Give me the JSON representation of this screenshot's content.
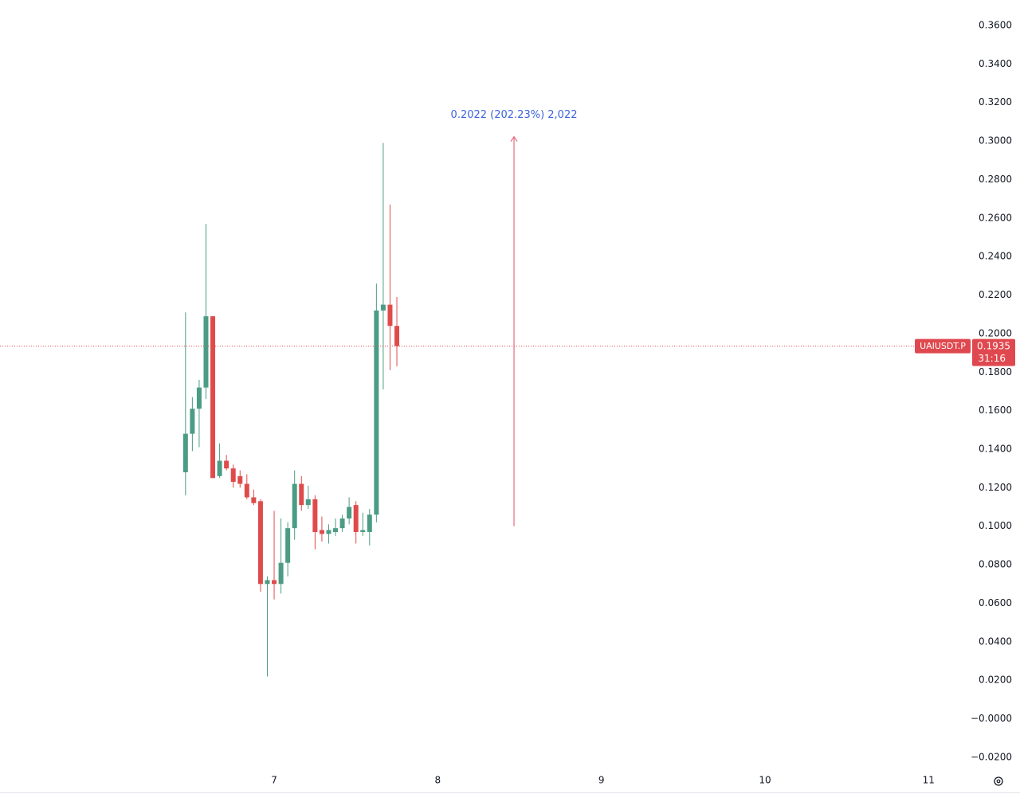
{
  "chart_data": {
    "type": "candlestick",
    "x": [
      6.4583,
      6.5,
      6.5417,
      6.5833,
      6.625,
      6.6667,
      6.7083,
      6.75,
      6.7917,
      6.8333,
      6.875,
      6.9167,
      6.9583,
      7,
      7.0417,
      7.0833,
      7.125,
      7.1667,
      7.2083,
      7.25,
      7.2917,
      7.3333,
      7.375,
      7.4167,
      7.4583,
      7.5,
      7.5417,
      7.5833,
      7.625,
      7.6667,
      7.7083,
      7.75
    ],
    "open": [
      0.128,
      0.148,
      0.161,
      0.172,
      0.209,
      0.126,
      0.134,
      0.13,
      0.126,
      0.122,
      0.115,
      0.113,
      0.07,
      0.072,
      0.07,
      0.081,
      0.099,
      0.122,
      0.111,
      0.114,
      0.098,
      0.096,
      0.097,
      0.099,
      0.104,
      0.111,
      0.097,
      0.097,
      0.106,
      0.212,
      0.215,
      0.204
    ],
    "high": [
      0.211,
      0.167,
      0.176,
      0.257,
      0.209,
      0.143,
      0.137,
      0.132,
      0.129,
      0.127,
      0.119,
      0.114,
      0.074,
      0.108,
      0.104,
      0.102,
      0.129,
      0.126,
      0.121,
      0.116,
      0.105,
      0.101,
      0.104,
      0.106,
      0.115,
      0.113,
      0.107,
      0.109,
      0.226,
      0.299,
      0.267,
      0.219
    ],
    "low": [
      0.116,
      0.139,
      0.141,
      0.166,
      0.125,
      0.125,
      0.129,
      0.12,
      0.12,
      0.114,
      0.111,
      0.066,
      0.022,
      0.062,
      0.065,
      0.074,
      0.093,
      0.108,
      0.109,
      0.088,
      0.092,
      0.091,
      0.095,
      0.097,
      0.101,
      0.091,
      0.095,
      0.09,
      0.102,
      0.171,
      0.181,
      0.183
    ],
    "close": [
      0.148,
      0.161,
      0.172,
      0.209,
      0.125,
      0.134,
      0.13,
      0.123,
      0.122,
      0.115,
      0.112,
      0.07,
      0.072,
      0.07,
      0.081,
      0.099,
      0.122,
      0.111,
      0.114,
      0.097,
      0.096,
      0.098,
      0.099,
      0.104,
      0.11,
      0.097,
      0.098,
      0.106,
      0.212,
      0.215,
      0.204,
      0.1935
    ],
    "up_color": "#4c9c85",
    "down_color": "#df4b4b",
    "xlim": [
      5.3244,
      11.242
    ],
    "xticks": [
      7,
      8,
      9,
      10,
      11
    ],
    "ylim": [
      -0.0258,
      0.3732
    ],
    "yticks": [
      {
        "value": 0.36,
        "label": "0.3600"
      },
      {
        "value": 0.34,
        "label": "0.3400"
      },
      {
        "value": 0.32,
        "label": "0.3200"
      },
      {
        "value": 0.3,
        "label": "0.3000"
      },
      {
        "value": 0.28,
        "label": "0.2800"
      },
      {
        "value": 0.26,
        "label": "0.2600"
      },
      {
        "value": 0.24,
        "label": "0.2400"
      },
      {
        "value": 0.22,
        "label": "0.2200"
      },
      {
        "value": 0.2,
        "label": "0.2000"
      },
      {
        "value": 0.18,
        "label": "0.1800"
      },
      {
        "value": 0.16,
        "label": "0.1600"
      },
      {
        "value": 0.14,
        "label": "0.1400"
      },
      {
        "value": 0.12,
        "label": "0.1200"
      },
      {
        "value": 0.1,
        "label": "0.1000"
      },
      {
        "value": 0.08,
        "label": "0.0800"
      },
      {
        "value": 0.06,
        "label": "0.0600"
      },
      {
        "value": 0.04,
        "label": "0.0400"
      },
      {
        "value": 0.02,
        "label": "0.0200"
      },
      {
        "value": 0,
        "label": "−0.0000"
      },
      {
        "value": -0.02,
        "label": "−0.0200"
      }
    ],
    "price_line": {
      "symbol": "UAIUSDT.P",
      "value": 0.1935,
      "countdown": "31:16",
      "color": "#e0484f"
    },
    "measure": {
      "x": 8.466,
      "from": 0.1,
      "to": 0.3022,
      "label": "0.2022 (202.23%) 2,022",
      "color": "#e8687c",
      "label_color": "#3d63dd"
    }
  }
}
